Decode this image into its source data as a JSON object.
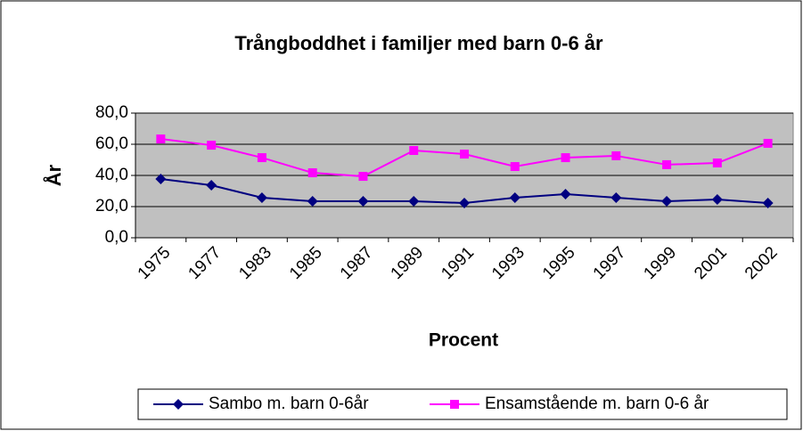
{
  "chart_data": {
    "type": "line",
    "title": "Trångboddhet i familjer med barn 0-6 år",
    "y_label": "År",
    "x_label": "Procent",
    "categories": [
      "1975",
      "1977",
      "1983",
      "1985",
      "1987",
      "1989",
      "1991",
      "1993",
      "1995",
      "1997",
      "1999",
      "2001",
      "2002"
    ],
    "series": [
      {
        "name": "Sambo m. barn 0-6år",
        "color": "#000080",
        "marker": "diamond",
        "values": [
          37.7,
          33.7,
          25.7,
          23.4,
          23.4,
          23.4,
          22.3,
          25.7,
          28,
          25.7,
          23.4,
          24.6,
          22.3
        ]
      },
      {
        "name": "Ensamstående m. barn 0-6 år",
        "color": "#ff00ff",
        "marker": "square",
        "values": [
          63.4,
          59.4,
          51.4,
          41.7,
          39.4,
          56,
          53.7,
          45.7,
          51.4,
          52.6,
          46.9,
          48,
          60.6
        ]
      }
    ],
    "ylim": [
      0,
      80
    ],
    "yticks": [
      {
        "value": 0,
        "label": "0,0"
      },
      {
        "value": 20,
        "label": "20,0"
      },
      {
        "value": 40,
        "label": "40,0"
      },
      {
        "value": 60,
        "label": "60,0"
      },
      {
        "value": 80,
        "label": "80,0"
      }
    ],
    "grid": true,
    "legend": "bottom"
  }
}
